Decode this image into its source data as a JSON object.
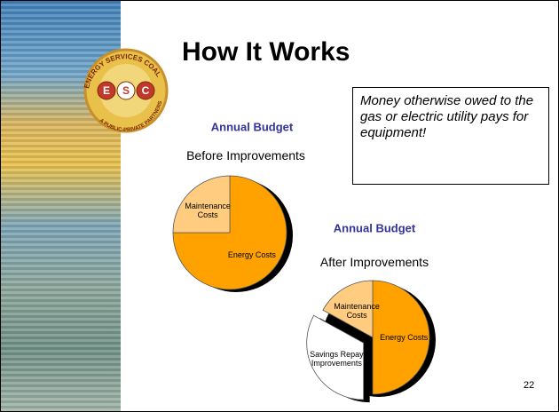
{
  "title": "How It Works",
  "callout": "Money otherwise owed to the gas or electric utility pays for equipment!",
  "page_number": "22",
  "logo": {
    "name": "ENERGY SERVICES COALITION",
    "tagline": "A PUBLIC-PRIVATE PARTNERSHIP",
    "letters": [
      "E",
      "S",
      "C"
    ]
  },
  "chart_data": [
    {
      "type": "pie",
      "title": "Annual Budget",
      "subtitle": "Before Improvements",
      "categories": [
        "Energy Costs",
        "Maintenance Costs"
      ],
      "values": [
        75,
        25
      ],
      "colors": [
        "#ffa200",
        "#ffcc80"
      ],
      "explode": [
        0,
        0
      ],
      "shadow": true
    },
    {
      "type": "pie",
      "title": "Annual Budget",
      "subtitle": "After Improvements",
      "categories": [
        "Energy Costs",
        "Savings Repay Improvements",
        "Maintenance Costs"
      ],
      "values": [
        50,
        33,
        17
      ],
      "colors": [
        "#ffa200",
        "#ffffff",
        "#ffcc80"
      ],
      "explode": [
        0,
        1,
        0
      ],
      "shadow": true
    }
  ]
}
